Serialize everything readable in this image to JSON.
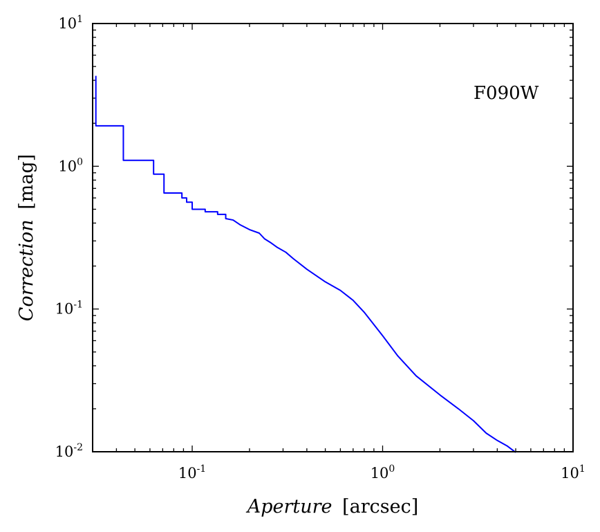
{
  "chart_data": {
    "type": "line",
    "xscale": "log",
    "yscale": "log",
    "xlim": [
      0.03,
      10
    ],
    "ylim": [
      0.01,
      10
    ],
    "xlabel": {
      "italic": "Aperture",
      "unit": "[arcsec]"
    },
    "ylabel": {
      "italic": "Correction",
      "unit": "[mag]"
    },
    "annotation": "F090W",
    "line_color": "#0000ff",
    "x_ticks": [
      {
        "value": 0.1,
        "base": "10",
        "exp": "-1"
      },
      {
        "value": 1,
        "base": "10",
        "exp": "0"
      },
      {
        "value": 10,
        "base": "10",
        "exp": "1"
      }
    ],
    "y_ticks": [
      {
        "value": 0.01,
        "base": "10",
        "exp": "-2"
      },
      {
        "value": 0.1,
        "base": "10",
        "exp": "-1"
      },
      {
        "value": 1,
        "base": "10",
        "exp": "0"
      },
      {
        "value": 10,
        "base": "10",
        "exp": "1"
      }
    ],
    "grid": false,
    "series": [
      {
        "x": [
          0.0312,
          0.0312,
          0.0435,
          0.0435,
          0.0627,
          0.0627,
          0.0711,
          0.0711,
          0.0883,
          0.0883,
          0.0935,
          0.0935,
          0.1,
          0.1,
          0.117,
          0.117,
          0.136,
          0.136,
          0.15,
          0.15,
          0.164,
          0.178,
          0.2,
          0.225,
          0.24,
          0.26,
          0.28,
          0.31,
          0.34,
          0.4,
          0.5,
          0.6,
          0.7,
          0.8,
          1.0,
          1.2,
          1.5,
          2.0,
          2.5,
          3.0,
          3.5,
          4.0,
          4.5,
          5.0
        ],
        "y": [
          4.3,
          1.92,
          1.92,
          1.1,
          1.1,
          0.88,
          0.88,
          0.65,
          0.65,
          0.6,
          0.6,
          0.56,
          0.56,
          0.5,
          0.5,
          0.48,
          0.48,
          0.46,
          0.46,
          0.43,
          0.42,
          0.39,
          0.36,
          0.34,
          0.31,
          0.29,
          0.27,
          0.25,
          0.225,
          0.19,
          0.155,
          0.135,
          0.115,
          0.095,
          0.065,
          0.047,
          0.034,
          0.025,
          0.02,
          0.0165,
          0.0135,
          0.012,
          0.011,
          0.0099
        ]
      }
    ]
  }
}
